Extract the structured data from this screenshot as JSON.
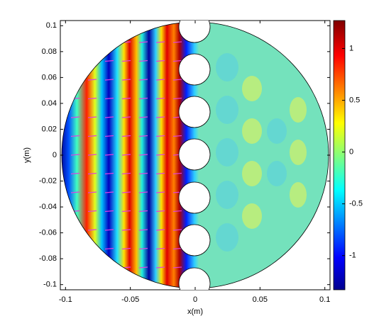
{
  "chart_data": {
    "type": "heatmap",
    "xlabel": "x(m)",
    "ylabel": "y(m)",
    "xlim": [
      -0.104,
      0.104
    ],
    "xticks": [
      -0.1,
      -0.05,
      0,
      0.05,
      0.1
    ],
    "ylim": [
      -0.104,
      0.104
    ],
    "yticks": [
      -0.1,
      -0.08,
      -0.06,
      -0.04,
      -0.02,
      0,
      0.02,
      0.04,
      0.06,
      0.08,
      0.1
    ],
    "clim": [
      -1.33,
      1.27
    ],
    "cticks": [
      -1,
      -0.5,
      0,
      0.5,
      1
    ]
  }
}
